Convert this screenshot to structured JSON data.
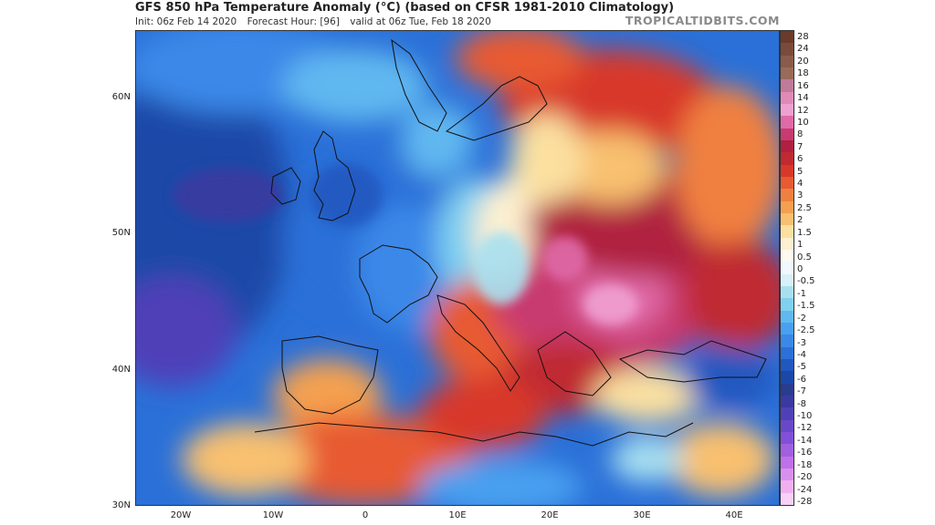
{
  "header": {
    "title": "GFS 850 hPa Temperature Anomaly (°C) (based on CFSR 1981-2010 Climatology)",
    "init": "Init: 06z Feb 14 2020",
    "forecast_hour": "Forecast Hour: [96]",
    "valid": "valid at 06z Tue, Feb 18 2020",
    "brand": "TROPICALTIDBITS.COM"
  },
  "axes": {
    "lat_labels": [
      "60N",
      "50N",
      "40N",
      "30N"
    ],
    "lon_labels": [
      "20W",
      "10W",
      "0",
      "10E",
      "20E",
      "30E",
      "40E"
    ]
  },
  "colorbar": {
    "ticks": [
      "28",
      "24",
      "20",
      "18",
      "16",
      "14",
      "12",
      "10",
      "8",
      "7",
      "6",
      "5",
      "4",
      "3",
      "2.5",
      "2",
      "1.5",
      "1",
      "0.5",
      "0",
      "-0.5",
      "-1",
      "-1.5",
      "-2",
      "-2.5",
      "-3",
      "-4",
      "-5",
      "-6",
      "-7",
      "-8",
      "-10",
      "-12",
      "-14",
      "-16",
      "-18",
      "-20",
      "-24",
      "-28"
    ],
    "colors": [
      "#6b3a2a",
      "#7a4a3a",
      "#8a5a4a",
      "#9a6a5a",
      "#c07a9a",
      "#e08ab8",
      "#f0a0d0",
      "#e06aa8",
      "#c83a70",
      "#b02040",
      "#c02a30",
      "#d8382a",
      "#e85a30",
      "#f08040",
      "#f4a050",
      "#f8c070",
      "#fbe0a0",
      "#fdf0d0",
      "#fffaf0",
      "#f0f8ff",
      "#d8f0f8",
      "#a8e0f0",
      "#80d0f0",
      "#60b8f0",
      "#4aa0f0",
      "#3a88e8",
      "#2a70d8",
      "#2058c0",
      "#1a48a8",
      "#283c90",
      "#3a3aa0",
      "#5040b8",
      "#6848c8",
      "#8050d8",
      "#a060e0",
      "#c070e8",
      "#d890f0",
      "#f0b0f0",
      "#f8d0f8"
    ]
  }
}
